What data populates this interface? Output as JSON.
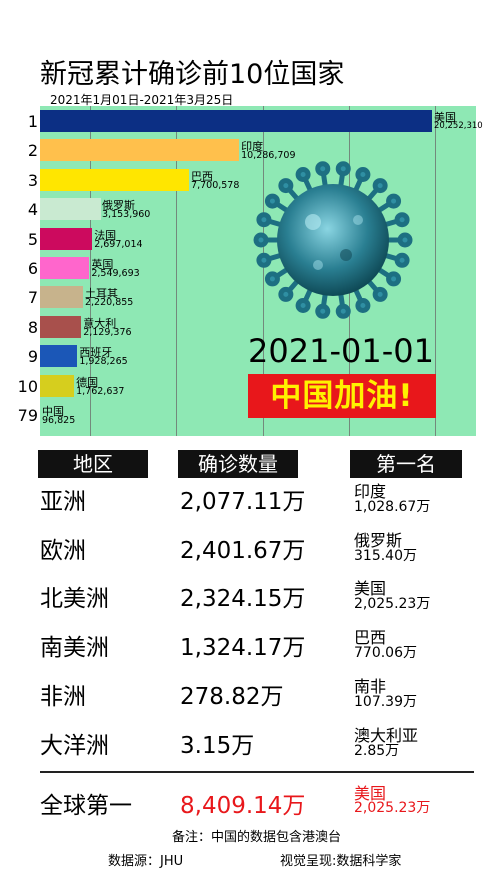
{
  "title": "新冠累计确诊前10位国家",
  "subtitle": "2021年1月01日-2021年3月25日",
  "date_display": "2021-01-01",
  "slogan": "中国加油!",
  "chart_data": {
    "type": "bar",
    "orientation": "horizontal",
    "title": "新冠累计确诊前10位国家",
    "subtitle": "2021年1月01日-2021年3月25日",
    "ranks": [
      "1",
      "2",
      "3",
      "4",
      "5",
      "6",
      "7",
      "8",
      "9",
      "10",
      "79"
    ],
    "categories": [
      "美国",
      "印度",
      "巴西",
      "俄罗斯",
      "法国",
      "英国",
      "土耳其",
      "意大利",
      "西班牙",
      "德国",
      "中国"
    ],
    "values": [
      20252310,
      10286709,
      7700578,
      3153960,
      2697014,
      2549693,
      2220855,
      2129376,
      1928265,
      1762637,
      96825
    ],
    "value_labels": [
      "20,252,310",
      "10,286,709",
      "7,700,578",
      "3,153,960",
      "2,697,014",
      "2,549,693",
      "2,220,855",
      "2,129,376",
      "1,928,265",
      "1,762,637",
      "96,825"
    ],
    "colors": [
      "#0c2f84",
      "#ffc04c",
      "#ffe600",
      "#c9ead1",
      "#cc0a5e",
      "#ff66cc",
      "#c7b38c",
      "#a8504c",
      "#1b57b7",
      "#d6ce1e",
      "#8ee8b4"
    ],
    "xlim": [
      0,
      20252310
    ],
    "grid": true
  },
  "table": {
    "headers": [
      "地区",
      "确诊数量",
      "第一名"
    ],
    "rows": [
      {
        "region": "亚洲",
        "total": "2,077.11万",
        "top_name": "印度",
        "top_value": "1,028.67万"
      },
      {
        "region": "欧洲",
        "total": "2,401.67万",
        "top_name": "俄罗斯",
        "top_value": "315.40万"
      },
      {
        "region": "北美洲",
        "total": "2,324.15万",
        "top_name": "美国",
        "top_value": "2,025.23万"
      },
      {
        "region": "南美洲",
        "total": "1,324.17万",
        "top_name": "巴西",
        "top_value": "770.06万"
      },
      {
        "region": "非洲",
        "total": "278.82万",
        "top_name": "南非",
        "top_value": "107.39万"
      },
      {
        "region": "大洋洲",
        "total": "3.15万",
        "top_name": "澳大利亚",
        "top_value": "2.85万"
      }
    ],
    "global": {
      "region": "全球第一",
      "total": "8,409.14万",
      "top_name": "美国",
      "top_value": "2,025.23万"
    }
  },
  "footer": {
    "note": "备注：中国的数据包含港澳台",
    "source": "数据源：JHU",
    "credit": "视觉呈现:数据科学家"
  },
  "colors": {
    "chart_bg": "#8ee8b4",
    "slogan_bg": "#e8171b",
    "slogan_text": "#fff200",
    "highlight": "#e8171b"
  }
}
